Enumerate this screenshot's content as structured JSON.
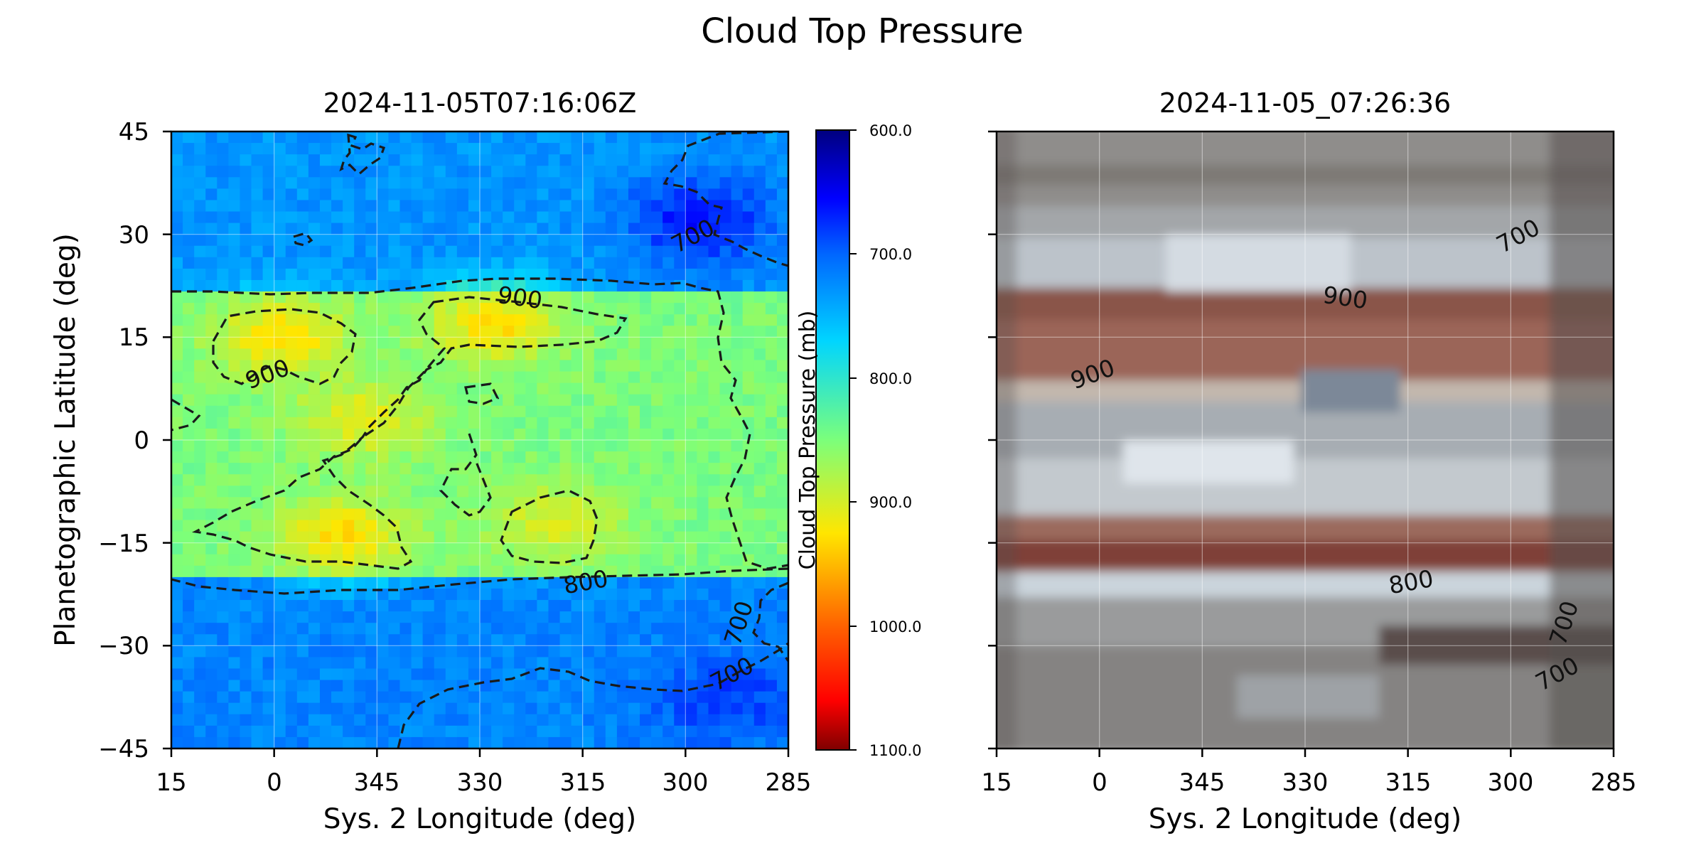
{
  "chart_data": {
    "type": "heatmap",
    "title": "Cloud Top Pressure",
    "panels": [
      {
        "title": "2024-11-05T07:16:06Z",
        "kind": "cloud_top_pressure_map",
        "xlabel": "Sys. 2 Longitude (deg)",
        "ylabel": "Planetographic Latitude (deg)",
        "xlim": [
          15,
          285
        ],
        "ylim": [
          -45,
          45
        ],
        "xticks": [
          "15",
          "0",
          "345",
          "330",
          "315",
          "300",
          "285"
        ],
        "yticks": [
          "45",
          "30",
          "15",
          "0",
          "−15",
          "−30",
          "−45"
        ],
        "grid": true,
        "contour_labels": [
          "900",
          "900",
          "700",
          "800",
          "700",
          "700"
        ],
        "colorbar": {
          "label": "Cloud Top Pressure (mb)",
          "range": [
            600,
            1100
          ],
          "ticks": [
            "600.0",
            "700.0",
            "800.0",
            "900.0",
            "1000.0",
            "1100.0"
          ],
          "colormap": "jet_r"
        }
      },
      {
        "title": "2024-11-05_07:26:36",
        "kind": "true_color_image",
        "xlabel": "Sys. 2 Longitude (deg)",
        "xlim": [
          15,
          285
        ],
        "ylim": [
          -45,
          45
        ],
        "xticks": [
          "15",
          "0",
          "345",
          "330",
          "315",
          "300",
          "285"
        ],
        "grid": true,
        "contour_labels": [
          "900",
          "900",
          "700",
          "800",
          "700",
          "700"
        ]
      }
    ],
    "contour_levels": [
      700,
      800,
      900
    ],
    "pressure_bands": [
      {
        "lat_range": [
          22,
          45
        ],
        "pressure": 730
      },
      {
        "lat_range": [
          -20,
          22
        ],
        "pressure": 850
      },
      {
        "lat_range": [
          -45,
          -20
        ],
        "pressure": 720
      }
    ],
    "high_pressure_regions": [
      {
        "lon": 359,
        "lat": 15,
        "pressure": 930
      },
      {
        "lon": 328,
        "lat": 17,
        "pressure": 930
      },
      {
        "lon": 347,
        "lat": 3,
        "pressure": 910
      },
      {
        "lon": 350,
        "lat": -14,
        "pressure": 930
      },
      {
        "lon": 319,
        "lat": -12,
        "pressure": 905
      }
    ],
    "low_pressure_regions": [
      {
        "lon": 298,
        "lat": 32,
        "pressure": 660
      },
      {
        "lon": 294,
        "lat": -38,
        "pressure": 680
      }
    ]
  }
}
